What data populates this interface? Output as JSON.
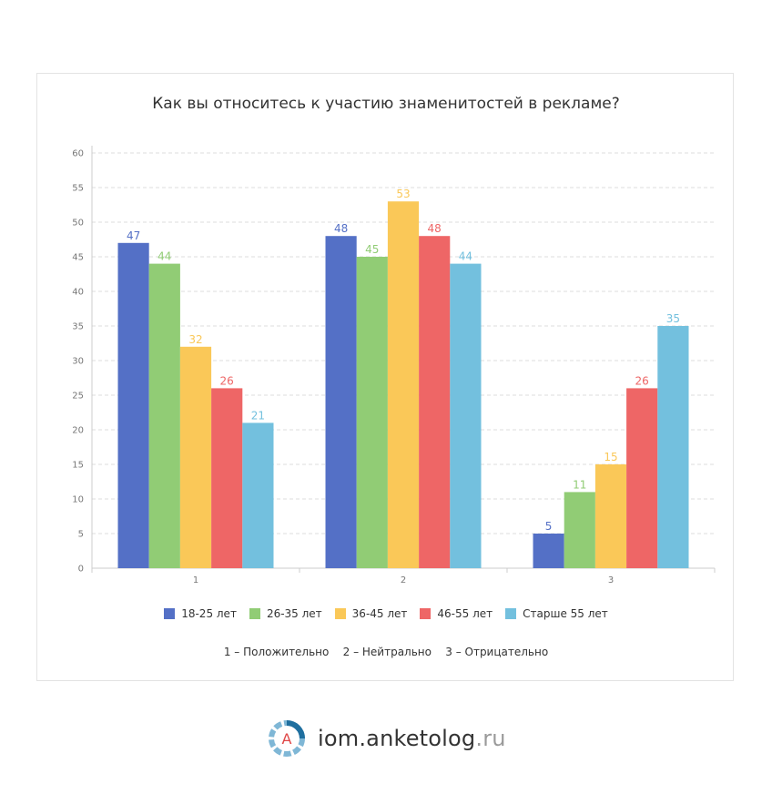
{
  "chart_data": {
    "type": "bar",
    "title": "Как вы относитесь к участию знаменитостей в рекламе?",
    "categories": [
      "1",
      "2",
      "3"
    ],
    "series": [
      {
        "name": "18-25 лет",
        "color": "#5470c6",
        "values": [
          47,
          48,
          5
        ]
      },
      {
        "name": "26-35 лет",
        "color": "#91cc75",
        "values": [
          44,
          45,
          11
        ]
      },
      {
        "name": "36-45 лет",
        "color": "#fac858",
        "values": [
          32,
          53,
          15
        ]
      },
      {
        "name": "46-55 лет",
        "color": "#ee6666",
        "values": [
          26,
          48,
          26
        ]
      },
      {
        "name": "Старше 55 лет",
        "color": "#73c0de",
        "values": [
          21,
          44,
          35
        ]
      }
    ],
    "ylim": [
      0,
      60
    ],
    "yticks": [
      0,
      5,
      10,
      15,
      20,
      25,
      30,
      35,
      40,
      45,
      50,
      55,
      60
    ],
    "grid": true,
    "legend_position": "bottom"
  },
  "footnote": "1 – Положительно    2 – Нейтрально    3 – Отрицательно",
  "brand": {
    "logo_letter": "A",
    "name": "iom.anketolog",
    "tld": ".ru"
  }
}
